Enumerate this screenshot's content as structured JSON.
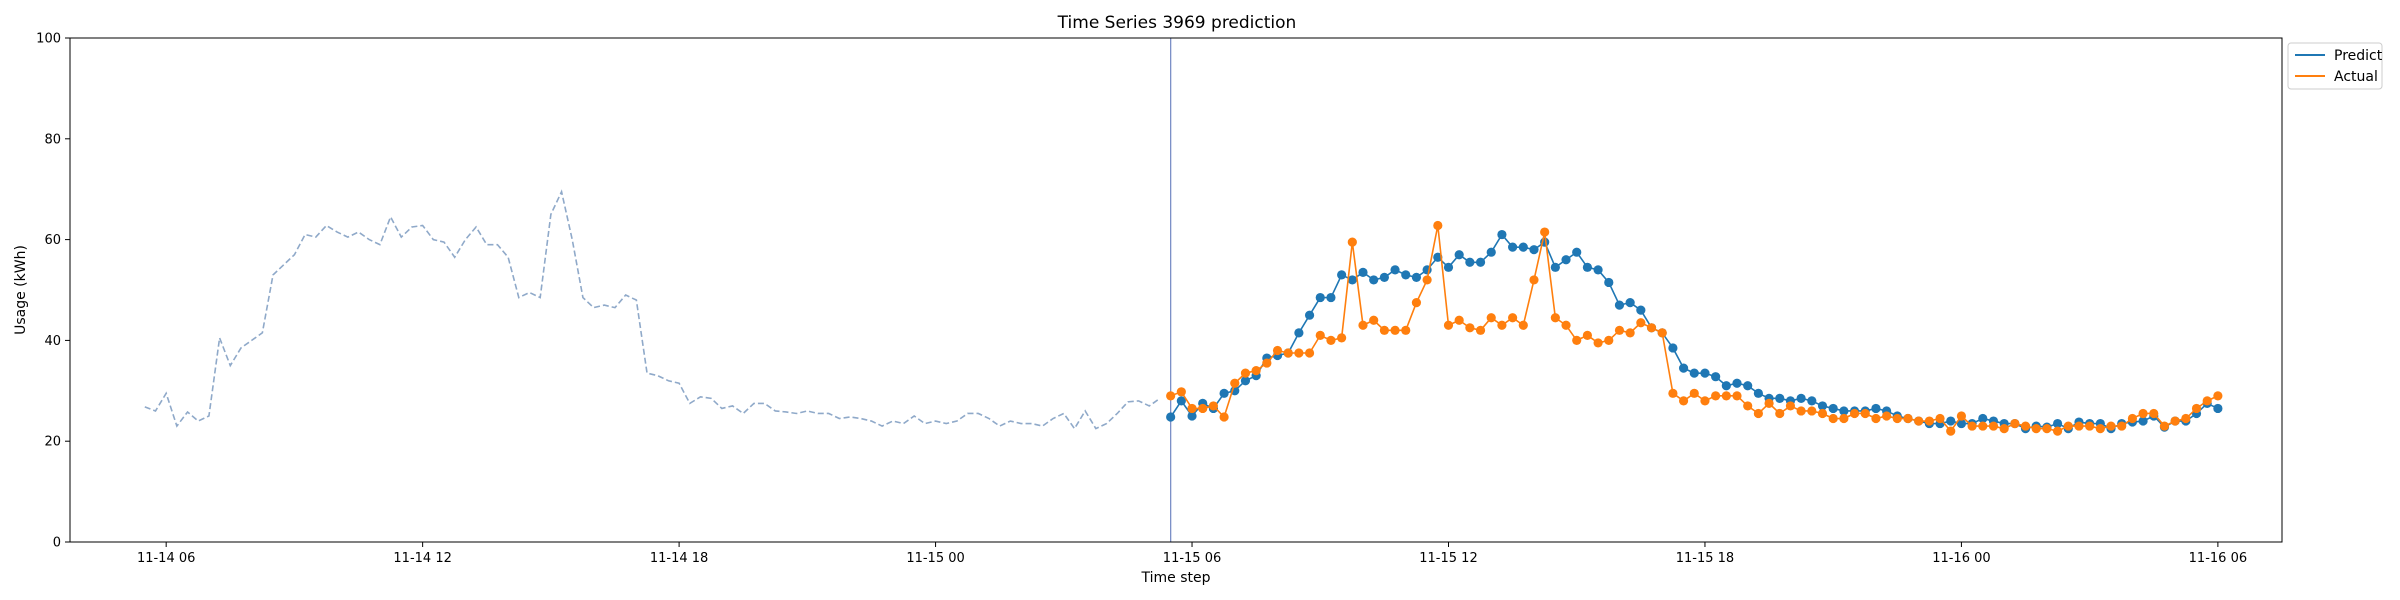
{
  "chart_data": {
    "type": "line",
    "title": "Time Series 3969 prediction",
    "xlabel": "Time step",
    "ylabel": "Usage (kWh)",
    "ylim": [
      0,
      100
    ],
    "yticks": [
      0,
      20,
      40,
      60,
      80,
      100
    ],
    "xlim": [
      "2023-11-14 03:45",
      "2023-11-16 07:30"
    ],
    "xticks": [
      {
        "value": "2023-11-14 06:00",
        "label": "11-14 06"
      },
      {
        "value": "2023-11-14 12:00",
        "label": "11-14 12"
      },
      {
        "value": "2023-11-14 18:00",
        "label": "11-14 18"
      },
      {
        "value": "2023-11-15 00:00",
        "label": "11-15 00"
      },
      {
        "value": "2023-11-15 06:00",
        "label": "11-15 06"
      },
      {
        "value": "2023-11-15 12:00",
        "label": "11-15 12"
      },
      {
        "value": "2023-11-15 18:00",
        "label": "11-15 18"
      },
      {
        "value": "2023-11-16 00:00",
        "label": "11-16 00"
      },
      {
        "value": "2023-11-16 06:00",
        "label": "11-16 06"
      }
    ],
    "vline": "2023-11-15 05:30",
    "legend": {
      "placement": "upper-right-outside"
    },
    "colors": {
      "history": "#8fa9c9",
      "predict": "#1f77b4",
      "actual": "#ff7f0e",
      "vline": "#7b8fc7"
    },
    "series": [
      {
        "key": "history",
        "style": "dashed",
        "start": "2023-11-14 05:30",
        "interval_minutes": 15,
        "values": [
          26.8,
          26.0,
          29.5,
          23.0,
          25.8,
          24.0,
          25.0,
          40.5,
          35.0,
          38.5,
          40.0,
          41.5,
          53.0,
          55.0,
          57.0,
          61.0,
          60.5,
          62.8,
          61.5,
          60.5,
          61.5,
          60.0,
          59.0,
          64.5,
          60.5,
          62.5,
          62.8,
          60.0,
          59.5,
          56.5,
          60.0,
          62.5,
          59.0,
          59.0,
          56.5,
          48.5,
          49.5,
          48.5,
          65.0,
          69.5,
          60.0,
          48.5,
          46.5,
          47.0,
          46.5,
          49.0,
          48.0,
          33.5,
          33.0,
          32.0,
          31.5,
          27.5,
          28.8,
          28.5,
          26.5,
          27.0,
          25.5,
          27.5,
          27.5,
          26.0,
          25.8,
          25.5,
          26.0,
          25.5,
          25.5,
          24.5,
          24.8,
          24.5,
          24.0,
          23.0,
          24.0,
          23.5,
          25.0,
          23.5,
          24.0,
          23.5,
          24.0,
          25.5,
          25.5,
          24.5,
          23.0,
          24.0,
          23.5,
          23.5,
          23.0,
          24.5,
          25.5,
          22.5,
          26.0,
          22.5,
          23.5,
          25.5,
          27.8,
          28.0,
          27.0,
          28.5
        ]
      },
      {
        "key": "predict",
        "name": "Predict",
        "style": "line-markers",
        "start": "2023-11-15 05:30",
        "interval_minutes": 15,
        "values": [
          24.8,
          28.0,
          25.0,
          27.5,
          26.5,
          29.5,
          30.0,
          32.0,
          33.0,
          36.5,
          37.0,
          37.5,
          41.5,
          45.0,
          48.5,
          48.5,
          53.0,
          52.0,
          53.5,
          52.0,
          52.5,
          54.0,
          53.0,
          52.5,
          54.0,
          56.5,
          54.5,
          57.0,
          55.5,
          55.5,
          57.5,
          61.0,
          58.5,
          58.5,
          58.0,
          59.5,
          54.5,
          56.0,
          57.5,
          54.5,
          54.0,
          51.5,
          47.0,
          47.5,
          46.0,
          42.5,
          41.5,
          38.5,
          34.5,
          33.5,
          33.5,
          32.8,
          31.0,
          31.5,
          31.0,
          29.5,
          28.5,
          28.5,
          28.0,
          28.5,
          28.0,
          27.0,
          26.5,
          26.0,
          26.0,
          26.0,
          26.5,
          26.0,
          25.0,
          24.5,
          24.0,
          23.5,
          23.5,
          24.0,
          23.5,
          23.5,
          24.5,
          24.0,
          23.5,
          23.5,
          22.5,
          23.0,
          22.8,
          23.5,
          22.5,
          23.8,
          23.5,
          23.5,
          22.5,
          23.5,
          23.8,
          24.0,
          25.0,
          22.8,
          24.0,
          24.0,
          25.5,
          27.5,
          26.5
        ]
      },
      {
        "key": "actual",
        "name": "Actual",
        "style": "line-markers",
        "start": "2023-11-15 05:30",
        "interval_minutes": 15,
        "values": [
          29.0,
          29.8,
          26.5,
          26.5,
          27.0,
          24.8,
          31.5,
          33.5,
          34.0,
          35.5,
          38.0,
          37.5,
          37.5,
          37.5,
          41.0,
          40.0,
          40.5,
          59.5,
          43.0,
          44.0,
          42.0,
          42.0,
          42.0,
          47.5,
          52.0,
          62.8,
          43.0,
          44.0,
          42.5,
          42.0,
          44.5,
          43.0,
          44.5,
          43.0,
          52.0,
          61.5,
          44.5,
          43.0,
          40.0,
          41.0,
          39.5,
          40.0,
          42.0,
          41.5,
          43.5,
          42.5,
          41.5,
          29.5,
          28.0,
          29.5,
          28.0,
          29.0,
          29.0,
          29.0,
          27.0,
          25.5,
          27.5,
          25.5,
          27.0,
          26.0,
          26.0,
          25.5,
          24.5,
          24.5,
          25.5,
          25.5,
          24.5,
          25.0,
          24.5,
          24.5,
          24.0,
          24.0,
          24.5,
          22.0,
          25.0,
          23.0,
          23.0,
          23.0,
          22.5,
          23.5,
          23.0,
          22.5,
          22.5,
          22.0,
          23.0,
          23.0,
          23.0,
          22.5,
          23.0,
          23.0,
          24.5,
          25.5,
          25.5,
          23.0,
          24.0,
          24.5,
          26.5,
          28.0,
          29.0
        ]
      }
    ]
  }
}
